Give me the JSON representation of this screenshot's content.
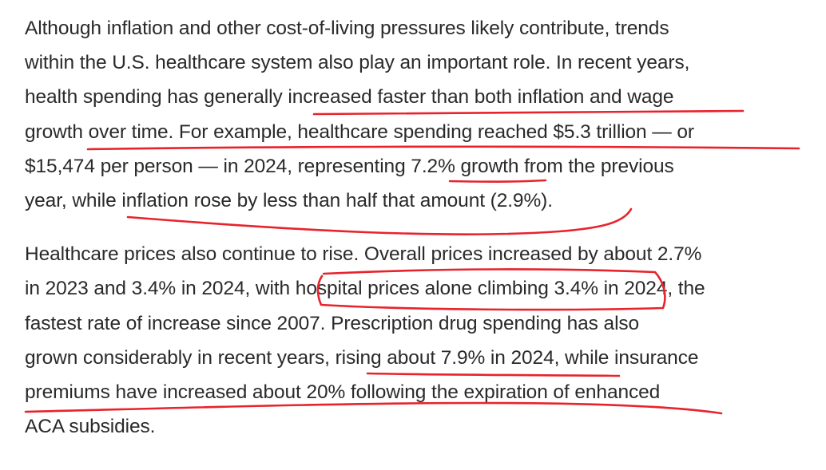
{
  "paragraphs": [
    {
      "lines": [
        "Although inflation and other cost-of-living pressures likely contribute, trends",
        "within the U.S. healthcare system also play an important role. In recent years,",
        "health spending has generally increased faster than both inflation and wage",
        "growth over time. For example, healthcare spending reached $5.3 trillion — or",
        "$15,474 per person — in 2024, representing 7.2% growth from the previous",
        "year, while inflation rose by less than half that amount (2.9%)."
      ]
    },
    {
      "lines": [
        "Healthcare prices also continue to rise. Overall prices increased by about 2.7%",
        "in 2023 and 3.4% in 2024, with hospital prices alone climbing 3.4% in 2024, the",
        "fastest rate of increase since 2007. Prescription drug spending has also",
        "grown considerably in recent years, rising about 7.9% in 2024, while insurance",
        "premiums have increased about 20% following the expiration of enhanced",
        "ACA subsidies."
      ]
    }
  ],
  "annotations": {
    "ink_color": "#e8232c"
  }
}
